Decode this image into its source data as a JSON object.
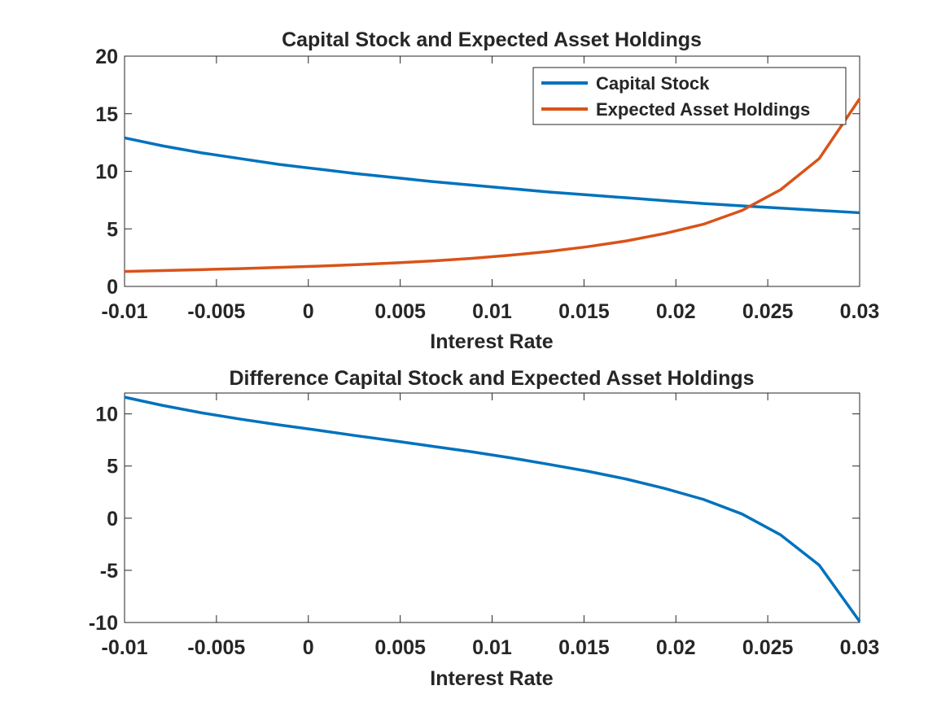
{
  "colors": {
    "series1": "#0072BD",
    "series2": "#D95319",
    "axis": "#262626"
  },
  "chart_data": [
    {
      "type": "line",
      "title": "Capital Stock and Expected Asset Holdings",
      "xlabel": "Interest Rate",
      "ylabel": "",
      "xlim": [
        -0.01,
        0.03
      ],
      "ylim": [
        0,
        20
      ],
      "xticks": [
        -0.01,
        -0.005,
        0,
        0.005,
        0.01,
        0.015,
        0.02,
        0.025,
        0.03
      ],
      "xtick_labels": [
        "-0.01",
        "-0.005",
        "0",
        "0.005",
        "0.01",
        "0.015",
        "0.02",
        "0.025",
        "0.03"
      ],
      "yticks": [
        0,
        5,
        10,
        15,
        20
      ],
      "ytick_labels": [
        "0",
        "5",
        "10",
        "15",
        "20"
      ],
      "grid": false,
      "legend": {
        "position": "top-right"
      },
      "series": [
        {
          "name": "Capital Stock",
          "color": "#0072BD",
          "x": [
            -0.01,
            -0.0079,
            -0.0058,
            -0.0037,
            -0.0016,
            0.0005,
            0.0026,
            0.0047,
            0.0068,
            0.0089,
            0.011,
            0.0131,
            0.0152,
            0.0173,
            0.0194,
            0.0215,
            0.0236,
            0.0257,
            0.0278,
            0.03
          ],
          "y": [
            12.9,
            12.2,
            11.6,
            11.1,
            10.6,
            10.2,
            9.8,
            9.45,
            9.1,
            8.8,
            8.5,
            8.2,
            7.95,
            7.7,
            7.45,
            7.2,
            7.0,
            6.8,
            6.6,
            6.4
          ]
        },
        {
          "name": "Expected Asset Holdings",
          "color": "#D95319",
          "x": [
            -0.01,
            -0.0079,
            -0.0058,
            -0.0037,
            -0.0016,
            0.0005,
            0.0026,
            0.0047,
            0.0068,
            0.0089,
            0.011,
            0.0131,
            0.0152,
            0.0173,
            0.0194,
            0.0215,
            0.0236,
            0.0257,
            0.0278,
            0.03
          ],
          "y": [
            1.3,
            1.38,
            1.46,
            1.55,
            1.65,
            1.76,
            1.89,
            2.04,
            2.22,
            2.44,
            2.71,
            3.04,
            3.45,
            3.95,
            4.6,
            5.4,
            6.6,
            8.4,
            11.1,
            16.3
          ]
        }
      ]
    },
    {
      "type": "line",
      "title": "Difference Capital Stock and Expected Asset Holdings",
      "xlabel": "Interest Rate",
      "ylabel": "",
      "xlim": [
        -0.01,
        0.03
      ],
      "ylim": [
        -10,
        12
      ],
      "xticks": [
        -0.01,
        -0.005,
        0,
        0.005,
        0.01,
        0.015,
        0.02,
        0.025,
        0.03
      ],
      "xtick_labels": [
        "-0.01",
        "-0.005",
        "0",
        "0.005",
        "0.01",
        "0.015",
        "0.02",
        "0.025",
        "0.03"
      ],
      "yticks": [
        -10,
        -5,
        0,
        5,
        10
      ],
      "ytick_labels": [
        "-10",
        "-5",
        "0",
        "5",
        "10"
      ],
      "grid": false,
      "series": [
        {
          "color": "#0072BD",
          "x": [
            -0.01,
            -0.0079,
            -0.0058,
            -0.0037,
            -0.0016,
            0.0005,
            0.0026,
            0.0047,
            0.0068,
            0.0089,
            0.011,
            0.0131,
            0.0152,
            0.0173,
            0.0194,
            0.0215,
            0.0236,
            0.0257,
            0.0278,
            0.03
          ],
          "y": [
            11.6,
            10.8,
            10.1,
            9.5,
            8.95,
            8.44,
            7.91,
            7.41,
            6.88,
            6.36,
            5.79,
            5.16,
            4.5,
            3.75,
            2.85,
            1.8,
            0.4,
            -1.6,
            -4.5,
            -9.9
          ]
        }
      ]
    }
  ]
}
